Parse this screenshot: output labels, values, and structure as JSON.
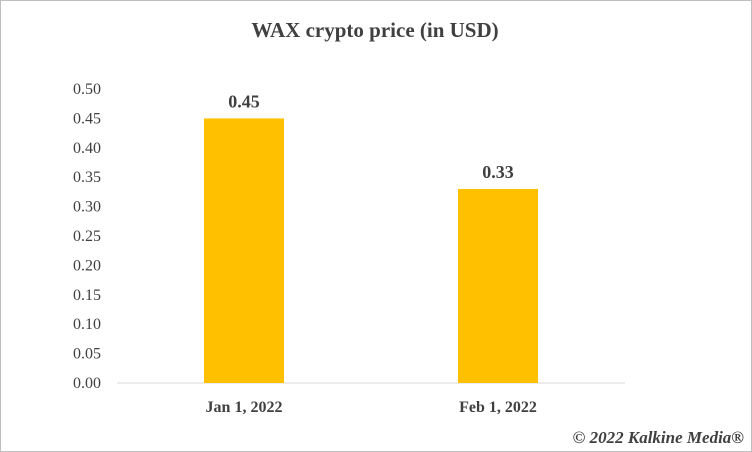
{
  "chart_data": {
    "type": "bar",
    "title": "WAX  crypto price (in USD)",
    "categories": [
      "Jan 1, 2022",
      "Feb 1, 2022"
    ],
    "values": [
      0.45,
      0.33
    ],
    "data_labels": [
      "0.45",
      "0.33"
    ],
    "ylim": [
      0,
      0.5
    ],
    "yticks": [
      "0.00",
      "0.05",
      "0.10",
      "0.15",
      "0.20",
      "0.25",
      "0.30",
      "0.35",
      "0.40",
      "0.45",
      "0.50"
    ],
    "bar_color": "#FFC000",
    "grid": false,
    "legend": "none"
  },
  "credit": "© 2022 Kalkine Media®"
}
